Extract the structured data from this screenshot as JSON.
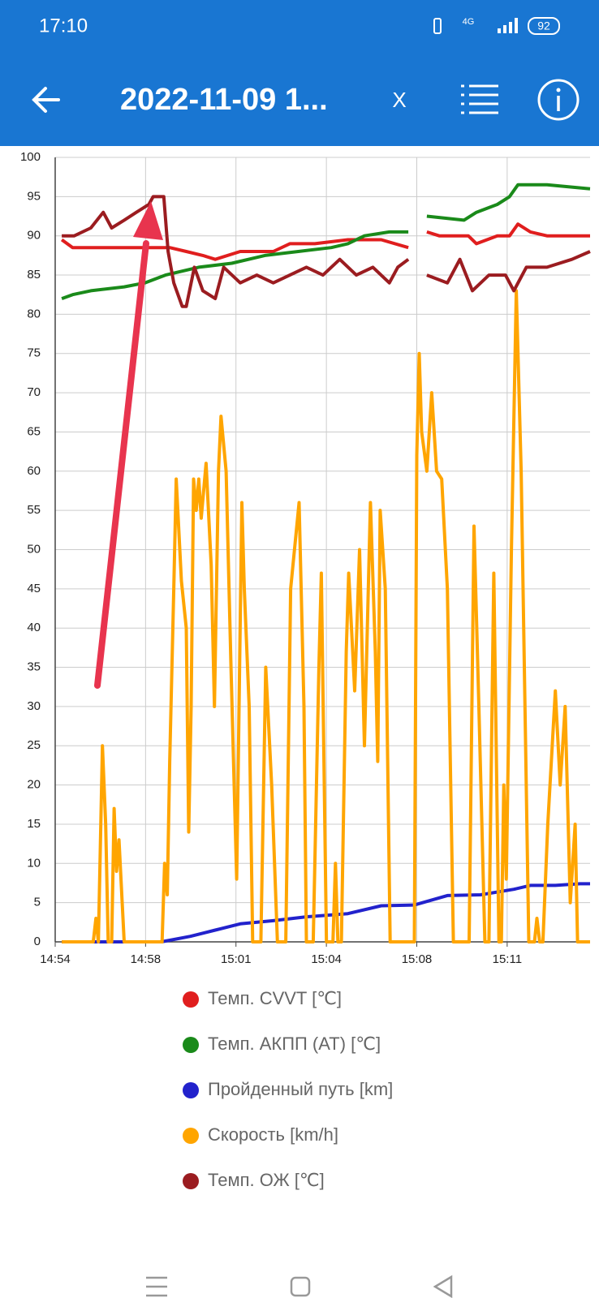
{
  "status_bar": {
    "time": "17:10",
    "network": "4G",
    "battery": "92"
  },
  "app_bar": {
    "title": "2022-11-09 1...",
    "close": "X"
  },
  "chart_data": {
    "type": "line",
    "xlim": [
      894.667,
      914.39
    ],
    "xticks": [
      {
        "value": 894.667,
        "label": "14:54"
      },
      {
        "value": 898,
        "label": "14:58"
      },
      {
        "value": 901.333,
        "label": "15:01"
      },
      {
        "value": 904.667,
        "label": "15:04"
      },
      {
        "value": 908,
        "label": "15:08"
      },
      {
        "value": 911.333,
        "label": "15:11"
      }
    ],
    "ylim": [
      0,
      100
    ],
    "yticks": [
      0,
      5,
      10,
      15,
      20,
      25,
      30,
      35,
      40,
      45,
      50,
      55,
      60,
      65,
      70,
      75,
      80,
      85,
      90,
      95,
      100
    ],
    "grid": true,
    "legend": "bottom",
    "series": [
      {
        "name": "Темп. CVVT [℃]",
        "color": "#e01e1e",
        "x": [
          894.91,
          895.31,
          898.12,
          898.89,
          899.5,
          900.11,
          900.57,
          901.49,
          902.71,
          903.32,
          904.24,
          905.46,
          906.69,
          907.69,
          908.0,
          908.37,
          908.83,
          909.9,
          910.2,
          910.97,
          911.42,
          911.73,
          912.19,
          912.8,
          914.39
        ],
        "values": [
          89.5,
          88.5,
          88.5,
          88.5,
          88,
          87.5,
          87,
          88,
          88,
          89,
          89,
          89.5,
          89.5,
          88.5,
          null,
          90.5,
          90,
          90,
          89,
          90,
          90,
          91.5,
          90.5,
          90,
          90
        ]
      },
      {
        "name": "Темп. АКПП (AT) [℃]",
        "color": "#1a8a1a",
        "x": [
          894.91,
          895.31,
          895.98,
          897.21,
          897.97,
          898.73,
          899.96,
          901.18,
          902.4,
          903.63,
          904.85,
          905.46,
          906.07,
          906.99,
          907.69,
          908.0,
          908.37,
          909.74,
          910.2,
          910.97,
          911.42,
          911.73,
          912.8,
          914.39
        ],
        "values": [
          82,
          82.5,
          83,
          83.5,
          84,
          85,
          86,
          86.5,
          87.5,
          88,
          88.5,
          89,
          90,
          90.5,
          90.5,
          null,
          92.5,
          92,
          93,
          94,
          95,
          96.5,
          96.5,
          96
        ]
      },
      {
        "name": "Пройденный путь [km]",
        "color": "#2222cc",
        "x": [
          894.91,
          898.58,
          899.65,
          900.57,
          901.49,
          902.71,
          903.93,
          905.46,
          906.69,
          907.91,
          909.13,
          910.35,
          911.58,
          912.19,
          913.11,
          914.02,
          914.39
        ],
        "values": [
          0,
          0,
          0.7,
          1.5,
          2.3,
          2.7,
          3.2,
          3.6,
          4.6,
          4.7,
          5.9,
          6.0,
          6.7,
          7.2,
          7.2,
          7.4,
          7.4
        ]
      },
      {
        "name": "Скорость [km/h]",
        "color": "#ffa500",
        "x": [
          894.91,
          896.07,
          896.17,
          896.26,
          896.41,
          896.53,
          896.62,
          896.75,
          896.84,
          896.93,
          897.02,
          897.21,
          898.61,
          898.7,
          898.8,
          898.89,
          899.04,
          899.13,
          899.32,
          899.5,
          899.59,
          899.68,
          899.77,
          899.87,
          899.96,
          900.05,
          900.23,
          900.42,
          900.54,
          900.69,
          900.78,
          900.97,
          901.15,
          901.36,
          901.55,
          901.64,
          901.82,
          901.95,
          902.25,
          902.43,
          902.65,
          902.86,
          903.17,
          903.35,
          903.66,
          903.84,
          903.93,
          904.18,
          904.39,
          904.48,
          904.67,
          904.91,
          905.0,
          905.09,
          905.22,
          905.4,
          905.49,
          905.71,
          905.89,
          906.07,
          906.29,
          906.47,
          906.56,
          906.65,
          906.84,
          907.02,
          907.91,
          908.0,
          908.09,
          908.18,
          908.37,
          908.55,
          908.73,
          908.92,
          909.13,
          909.35,
          909.93,
          910.11,
          910.29,
          910.51,
          910.66,
          910.84,
          911.03,
          911.12,
          911.21,
          911.3,
          911.49,
          911.67,
          911.85,
          912.13,
          912.34,
          912.43,
          912.53,
          912.65,
          912.83,
          913.11,
          913.29,
          913.47,
          913.66,
          913.84,
          913.93,
          914.39
        ],
        "values": [
          0,
          0,
          3,
          0,
          25,
          15,
          0,
          0,
          17,
          9,
          13,
          0,
          0,
          10,
          6,
          23,
          45,
          59,
          46,
          40,
          14,
          30,
          59,
          55,
          59,
          54,
          61,
          48,
          30,
          60,
          67,
          60,
          35,
          8,
          56,
          45,
          30,
          0,
          0,
          35,
          20,
          0,
          0,
          45,
          56,
          30,
          0,
          0,
          35,
          47,
          0,
          0,
          10,
          0,
          0,
          37,
          47,
          32,
          50,
          25,
          56,
          37,
          23,
          55,
          45,
          0,
          0,
          62,
          75,
          65,
          60,
          70,
          60,
          59,
          45,
          0,
          0,
          53,
          30,
          0,
          0,
          47,
          0,
          0,
          20,
          8,
          50,
          83,
          60,
          0,
          0,
          3,
          0,
          0,
          15,
          32,
          20,
          30,
          5,
          15,
          0,
          0
        ]
      },
      {
        "name": "Темп. ОЖ [℃]",
        "color": "#9b1c20",
        "x": [
          894.91,
          895.37,
          895.98,
          896.44,
          896.75,
          897.21,
          897.66,
          898.12,
          898.28,
          898.67,
          898.83,
          899.04,
          899.35,
          899.5,
          899.8,
          900.11,
          900.57,
          900.88,
          901.49,
          902.1,
          902.71,
          903.32,
          903.93,
          904.54,
          905.16,
          905.77,
          906.38,
          906.99,
          907.3,
          907.69,
          908.0,
          908.37,
          909.13,
          909.59,
          910.05,
          910.66,
          911.27,
          911.58,
          912.04,
          912.8,
          913.72,
          914.39
        ],
        "values": [
          90,
          90,
          91,
          93,
          91,
          92,
          93,
          94,
          95,
          95,
          88,
          84,
          81,
          81,
          86,
          83,
          82,
          86,
          84,
          85,
          84,
          85,
          86,
          85,
          87,
          85,
          86,
          84,
          86,
          87,
          null,
          85,
          84,
          87,
          83,
          85,
          85,
          83,
          86,
          86,
          87,
          88
        ]
      }
    ]
  }
}
